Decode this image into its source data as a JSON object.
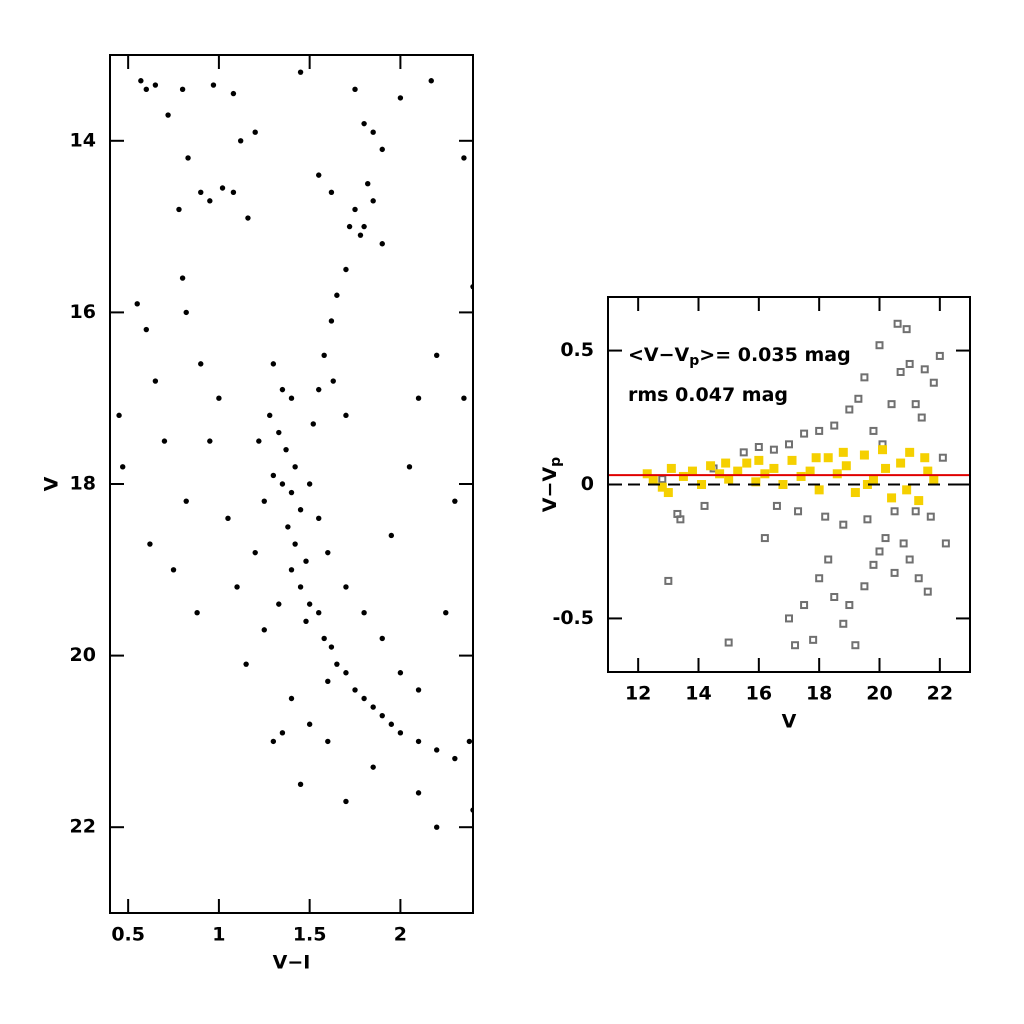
{
  "chart_data": [
    {
      "type": "scatter",
      "x_label": "V−I",
      "y_label": "V",
      "xlim": [
        0.4,
        2.4
      ],
      "ylim": [
        23,
        13
      ],
      "xticks": [
        0.5,
        1,
        1.5,
        2
      ],
      "yticks": [
        14,
        16,
        18,
        20,
        22
      ],
      "series": [
        {
          "color": "#000000",
          "marker": "filled-circle",
          "x": [
            0.57,
            0.6,
            0.65,
            0.72,
            0.8,
            0.83,
            0.78,
            0.9,
            0.95,
            1.02,
            1.08,
            1.12,
            1.16,
            1.2,
            0.97,
            1.08,
            1.45,
            1.75,
            2.0,
            2.17,
            2.35,
            1.8,
            1.85,
            1.9,
            1.82,
            1.75,
            1.72,
            1.78,
            1.8,
            1.7,
            1.65,
            1.62,
            1.58,
            1.55,
            1.52,
            1.63,
            1.7,
            1.55,
            1.62,
            1.85,
            1.9,
            0.45,
            0.47,
            0.6,
            0.65,
            0.7,
            0.62,
            0.82,
            0.88,
            0.75,
            0.82,
            0.9,
            1.0,
            0.95,
            1.05,
            1.1,
            0.55,
            0.8,
            1.3,
            1.35,
            1.4,
            1.28,
            1.33,
            1.37,
            1.42,
            1.3,
            1.35,
            1.4,
            1.45,
            1.38,
            1.42,
            1.48,
            1.4,
            1.45,
            1.5,
            1.55,
            1.48,
            1.58,
            1.62,
            1.65,
            1.7,
            1.6,
            1.75,
            1.8,
            1.85,
            1.9,
            1.95,
            2.0,
            2.1,
            2.2,
            2.3,
            2.38,
            1.25,
            1.2,
            1.22,
            1.5,
            1.55,
            1.6,
            1.7,
            1.8,
            1.9,
            2.0,
            2.1,
            1.5,
            1.6,
            1.4,
            1.35,
            1.3,
            1.7,
            2.2,
            2.1,
            2.4,
            1.85,
            1.45,
            1.15,
            1.25,
            1.33,
            2.25,
            2.3,
            2.05,
            2.2,
            2.35,
            2.4,
            2.1,
            1.95
          ],
          "y": [
            13.3,
            13.4,
            13.35,
            13.7,
            13.4,
            14.2,
            14.8,
            14.6,
            14.7,
            14.55,
            14.6,
            14.0,
            14.9,
            13.9,
            13.35,
            13.45,
            13.2,
            13.4,
            13.5,
            13.3,
            14.2,
            13.8,
            13.9,
            14.1,
            14.5,
            14.8,
            15.0,
            15.1,
            15.0,
            15.5,
            15.8,
            16.1,
            16.5,
            16.9,
            17.3,
            16.8,
            17.2,
            14.4,
            14.6,
            14.7,
            15.2,
            17.2,
            17.8,
            16.2,
            16.8,
            17.5,
            18.7,
            18.2,
            19.5,
            19.0,
            16.0,
            16.6,
            17.0,
            17.5,
            18.4,
            19.2,
            15.9,
            15.6,
            16.6,
            16.9,
            17.0,
            17.2,
            17.4,
            17.6,
            17.8,
            17.9,
            18.0,
            18.1,
            18.3,
            18.5,
            18.7,
            18.9,
            19.0,
            19.2,
            19.4,
            19.5,
            19.6,
            19.8,
            19.9,
            20.1,
            20.2,
            20.3,
            20.4,
            20.5,
            20.6,
            20.7,
            20.8,
            20.9,
            21.0,
            21.1,
            21.2,
            21.0,
            18.2,
            18.8,
            17.5,
            18.0,
            18.4,
            18.8,
            19.2,
            19.5,
            19.8,
            20.2,
            20.4,
            20.8,
            21.0,
            20.5,
            20.9,
            21.0,
            21.7,
            22.0,
            21.6,
            21.8,
            21.3,
            21.5,
            20.1,
            19.7,
            19.4,
            19.5,
            18.2,
            17.8,
            16.5,
            17.0,
            15.7,
            17.0,
            18.6
          ]
        }
      ]
    },
    {
      "type": "scatter",
      "x_label": "V",
      "y_label": {
        "main": "V−V",
        "sub": "p"
      },
      "xlim": [
        11,
        23
      ],
      "ylim": [
        -0.7,
        0.7
      ],
      "xticks": [
        12,
        14,
        16,
        18,
        20,
        22
      ],
      "yticks": [
        -0.5,
        0,
        0.5
      ],
      "annotations": [
        {
          "main": "<V−V",
          "sub": "p",
          "after": ">= 0.035 mag"
        },
        {
          "main": "rms 0.047 mag"
        }
      ],
      "reference_lines": [
        {
          "value": 0.035,
          "color": "#e00000",
          "style": "solid"
        },
        {
          "value": 0,
          "color": "#000000",
          "style": "dashed"
        }
      ],
      "series": [
        {
          "color": "#707070",
          "marker": "open-square",
          "x": [
            13,
            13.3,
            13.4,
            15,
            14.5,
            15.5,
            16,
            17,
            17.2,
            17.5,
            17.8,
            18,
            18.3,
            18.5,
            18.8,
            19,
            19.2,
            19.5,
            19.8,
            20,
            20.2,
            20.5,
            20.8,
            21,
            21.3,
            21.6,
            22.2,
            20.6,
            20.9,
            21,
            20.7,
            21.5,
            21.8,
            22,
            20,
            19.5,
            19.3,
            19,
            18.5,
            18,
            17.5,
            17,
            16.5,
            21.2,
            21.4,
            20.4,
            19.8,
            20.1,
            18.8,
            18.2,
            17.3,
            16.6,
            21.7,
            21.2,
            20.5,
            19.6,
            16.2,
            14.2,
            12.8,
            22.1
          ],
          "y": [
            -0.36,
            -0.11,
            -0.13,
            -0.59,
            0.06,
            0.12,
            0.14,
            -0.5,
            -0.6,
            -0.45,
            -0.58,
            -0.35,
            -0.28,
            -0.42,
            -0.52,
            -0.45,
            -0.6,
            -0.38,
            -0.3,
            -0.25,
            -0.2,
            -0.33,
            -0.22,
            -0.28,
            -0.35,
            -0.4,
            -0.22,
            0.6,
            0.58,
            0.45,
            0.42,
            0.43,
            0.38,
            0.48,
            0.52,
            0.4,
            0.32,
            0.28,
            0.22,
            0.2,
            0.19,
            0.15,
            0.13,
            0.3,
            0.25,
            0.3,
            0.2,
            0.15,
            -0.15,
            -0.12,
            -0.1,
            -0.08,
            -0.12,
            -0.1,
            -0.1,
            -0.13,
            -0.2,
            -0.08,
            0.02,
            0.1
          ]
        },
        {
          "color": "#f5d000",
          "marker": "filled-square",
          "x": [
            12.3,
            12.5,
            12.8,
            13.1,
            13.5,
            13.8,
            14.1,
            14.4,
            14.7,
            15.0,
            15.3,
            15.6,
            15.9,
            16.2,
            16.5,
            16.8,
            17.1,
            17.4,
            17.7,
            18.0,
            18.3,
            18.6,
            18.9,
            19.2,
            19.5,
            19.8,
            20.1,
            20.4,
            20.7,
            21.0,
            21.3,
            21.6,
            21.8,
            20.2,
            19.6,
            18.8,
            17.9,
            20.9,
            21.5,
            16.0,
            13.0,
            14.9
          ],
          "y": [
            0.04,
            0.02,
            -0.01,
            0.06,
            0.03,
            0.05,
            0.0,
            0.07,
            0.04,
            0.02,
            0.05,
            0.08,
            0.01,
            0.04,
            0.06,
            0.0,
            0.09,
            0.03,
            0.05,
            -0.02,
            0.1,
            0.04,
            0.07,
            -0.03,
            0.11,
            0.02,
            0.13,
            -0.05,
            0.08,
            0.12,
            -0.06,
            0.05,
            0.02,
            0.06,
            0.0,
            0.12,
            0.1,
            -0.02,
            0.1,
            0.09,
            -0.03,
            0.08
          ]
        }
      ]
    }
  ]
}
